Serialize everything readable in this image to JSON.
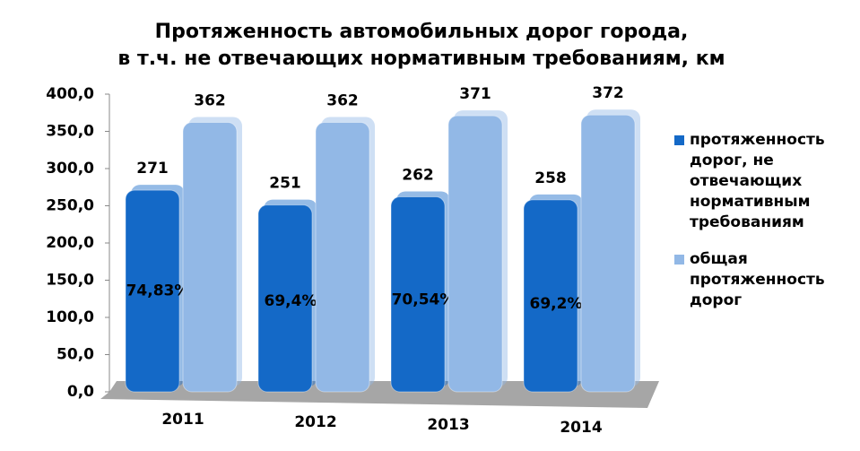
{
  "chart_data": {
    "type": "bar",
    "title": "Протяженность автомобильных дорог города,",
    "subtitle": "в т.ч. не отвечающих нормативным требованиям, км",
    "categories": [
      "2011",
      "2012",
      "2013",
      "2014"
    ],
    "series": [
      {
        "name": "протяженность дорог, не отвечающих нормативным требованиям",
        "color": "#1469c7",
        "values": [
          271,
          251,
          262,
          258
        ]
      },
      {
        "name": "общая протяженность дорог",
        "color": "#92b8e6",
        "values": [
          362,
          362,
          371,
          372
        ]
      }
    ],
    "annotations": [
      "74,83%",
      "69,4%",
      "70,54%",
      "69,2%"
    ],
    "ylim": [
      0,
      400
    ],
    "yticks": [
      {
        "value": 0,
        "label": "0,0"
      },
      {
        "value": 50,
        "label": "50,0"
      },
      {
        "value": 100,
        "label": "100,0"
      },
      {
        "value": 150,
        "label": "150,0"
      },
      {
        "value": 200,
        "label": "200,0"
      },
      {
        "value": 250,
        "label": "250,0"
      },
      {
        "value": 300,
        "label": "300,0"
      },
      {
        "value": 350,
        "label": "350,0"
      },
      {
        "value": 400,
        "label": "400,0"
      }
    ],
    "legend": "right"
  }
}
